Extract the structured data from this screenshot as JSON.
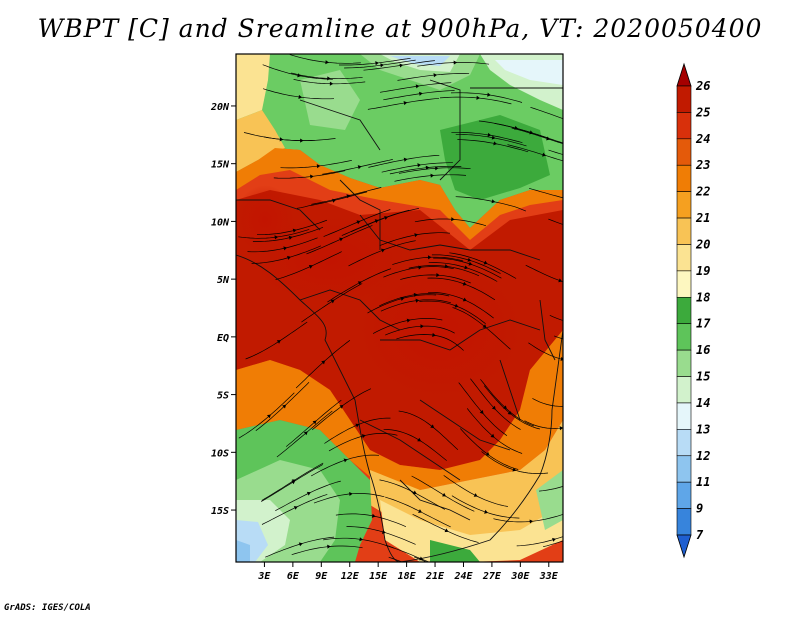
{
  "title": "WBPT [C] and Sreamline at 900hPa, VT: 2020050400",
  "credit": "GrADS: IGES/COLA",
  "map": {
    "lat_labels": [
      "20N",
      "15N",
      "10N",
      "5N",
      "EQ",
      "5S",
      "10S",
      "15S"
    ],
    "lon_labels": [
      "3E",
      "6E",
      "9E",
      "12E",
      "15E",
      "18E",
      "21E",
      "24E",
      "27E",
      "30E",
      "33E"
    ],
    "lat_values": [
      20,
      15,
      10,
      5,
      0,
      -5,
      -10,
      -15
    ],
    "lon_values": [
      3,
      6,
      9,
      12,
      15,
      18,
      21,
      24,
      27,
      30,
      33
    ],
    "lon_range": [
      0,
      34.5
    ],
    "lat_range": [
      -19.5,
      24.5
    ]
  },
  "colorbar": {
    "labels": [
      "26",
      "25",
      "24",
      "23",
      "22",
      "21",
      "20",
      "19",
      "18",
      "17",
      "16",
      "15",
      "14",
      "13",
      "12",
      "11",
      "9",
      "7"
    ],
    "colors": [
      "#a50000",
      "#c11a00",
      "#d8300b",
      "#e45a0a",
      "#f07d05",
      "#f5a020",
      "#f8c355",
      "#fbe392",
      "#fdf7c0",
      "#3caa3c",
      "#5ec45a",
      "#99dc8e",
      "#d2f2cc",
      "#e5f6fa",
      "#b8dcf6",
      "#8ec5ef",
      "#5fa6e8",
      "#3784dc",
      "#1f5fd0"
    ]
  }
}
